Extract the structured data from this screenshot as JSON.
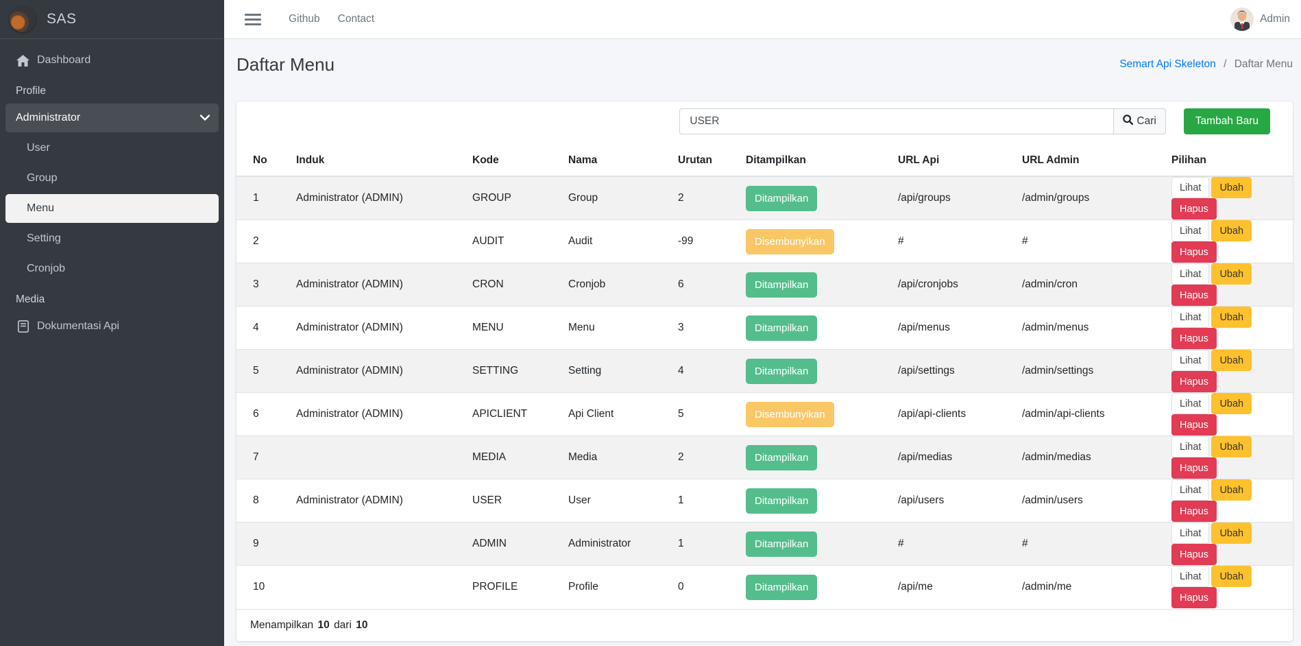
{
  "brand": {
    "title": "SAS"
  },
  "navbar": {
    "links": {
      "github": "Github",
      "contact": "Contact"
    },
    "user": {
      "name": "Admin"
    }
  },
  "sidebar": {
    "dashboard": "Dashboard",
    "header_profile": "Profile",
    "administrator": "Administrator",
    "sub_user": "User",
    "sub_group": "Group",
    "sub_menu": "Menu",
    "sub_setting": "Setting",
    "sub_cronjob": "Cronjob",
    "header_media": "Media",
    "dokumentasi": "Dokumentasi Api",
    "active_item": "Menu"
  },
  "page": {
    "title": "Daftar Menu",
    "breadcrumb": {
      "root": "Semart Api Skeleton",
      "separator": "/",
      "current": "Daftar Menu"
    }
  },
  "toolbar": {
    "search_value": "USER",
    "search_button": "Cari",
    "add_button": "Tambah Baru"
  },
  "table": {
    "columns": [
      "No",
      "Induk",
      "Kode",
      "Nama",
      "Urutan",
      "Ditampilkan",
      "URL Api",
      "URL Admin",
      "Pilihan"
    ],
    "actions": {
      "view": "Lihat",
      "edit": "Ubah",
      "delete": "Hapus"
    },
    "rows": [
      {
        "no": "1",
        "induk": "Administrator (ADMIN)",
        "kode": "GROUP",
        "nama": "Group",
        "urutan": "2",
        "status": "shown",
        "ditampilkan": "Ditampilkan",
        "url_api": "/api/groups",
        "url_admin": "/admin/groups"
      },
      {
        "no": "2",
        "induk": "",
        "kode": "AUDIT",
        "nama": "Audit",
        "urutan": "-99",
        "status": "hidden",
        "ditampilkan": "Disembunyikan",
        "url_api": "#",
        "url_admin": "#"
      },
      {
        "no": "3",
        "induk": "Administrator (ADMIN)",
        "kode": "CRON",
        "nama": "Cronjob",
        "urutan": "6",
        "status": "shown",
        "ditampilkan": "Ditampilkan",
        "url_api": "/api/cronjobs",
        "url_admin": "/admin/cron"
      },
      {
        "no": "4",
        "induk": "Administrator (ADMIN)",
        "kode": "MENU",
        "nama": "Menu",
        "urutan": "3",
        "status": "shown",
        "ditampilkan": "Ditampilkan",
        "url_api": "/api/menus",
        "url_admin": "/admin/menus"
      },
      {
        "no": "5",
        "induk": "Administrator (ADMIN)",
        "kode": "SETTING",
        "nama": "Setting",
        "urutan": "4",
        "status": "shown",
        "ditampilkan": "Ditampilkan",
        "url_api": "/api/settings",
        "url_admin": "/admin/settings"
      },
      {
        "no": "6",
        "induk": "Administrator (ADMIN)",
        "kode": "APICLIENT",
        "nama": "Api Client",
        "urutan": "5",
        "status": "hidden",
        "ditampilkan": "Disembunyikan",
        "url_api": "/api/api-clients",
        "url_admin": "/admin/api-clients"
      },
      {
        "no": "7",
        "induk": "",
        "kode": "MEDIA",
        "nama": "Media",
        "urutan": "2",
        "status": "shown",
        "ditampilkan": "Ditampilkan",
        "url_api": "/api/medias",
        "url_admin": "/admin/medias"
      },
      {
        "no": "8",
        "induk": "Administrator (ADMIN)",
        "kode": "USER",
        "nama": "User",
        "urutan": "1",
        "status": "shown",
        "ditampilkan": "Ditampilkan",
        "url_api": "/api/users",
        "url_admin": "/admin/users"
      },
      {
        "no": "9",
        "induk": "",
        "kode": "ADMIN",
        "nama": "Administrator",
        "urutan": "1",
        "status": "shown",
        "ditampilkan": "Ditampilkan",
        "url_api": "#",
        "url_admin": "#"
      },
      {
        "no": "10",
        "induk": "",
        "kode": "PROFILE",
        "nama": "Profile",
        "urutan": "0",
        "status": "shown",
        "ditampilkan": "Ditampilkan",
        "url_api": "/api/me",
        "url_admin": "/admin/me"
      }
    ],
    "footer": {
      "text": "Menampilkan",
      "count": "10",
      "separator": "dari",
      "total": "10"
    }
  },
  "colors": {
    "sidebar_bg": "#343a40",
    "content_bg": "#f4f6f9",
    "link_blue": "#007bff",
    "success_green": "#28a745",
    "badge_shown_green": "#54bd8c",
    "badge_hidden_yellow": "#fac767",
    "edit_yellow": "#fdc12e",
    "delete_red": "#e23b55"
  }
}
